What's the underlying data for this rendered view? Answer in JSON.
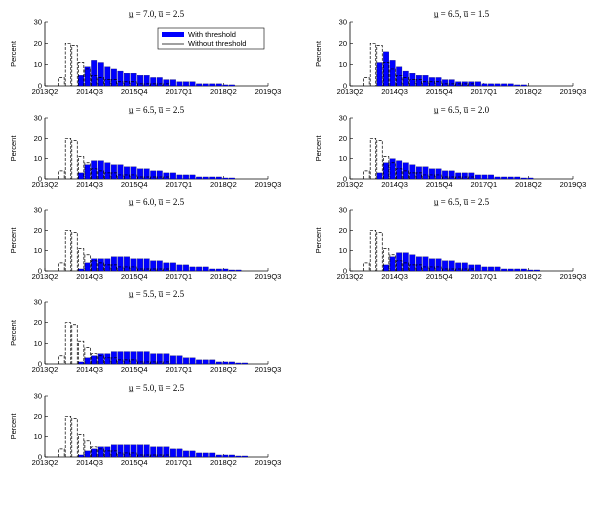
{
  "chart_data": [
    {
      "type": "bar",
      "title": "u̲ = 7.0, u̅ = 2.5",
      "ylabel": "Percent",
      "ylim": [
        0,
        30
      ],
      "yticks": [
        "0",
        "10",
        "20",
        "30"
      ],
      "xticks": [
        "2013Q2",
        "2014Q3",
        "2015Q4",
        "2017Q1",
        "2018Q2",
        "2019Q3"
      ],
      "legend": {
        "position": "top-right",
        "entries": [
          "With threshold",
          "Without threshold"
        ]
      },
      "series": [
        {
          "name": "With threshold",
          "style": "filled-bar",
          "values": [
            0,
            0,
            0,
            0,
            0,
            5,
            9,
            12,
            11,
            9,
            8,
            7,
            6,
            6,
            5,
            5,
            4,
            4,
            3,
            3,
            2,
            2,
            2,
            1,
            1,
            1,
            1,
            0.5,
            0.5,
            0,
            0,
            0,
            0,
            0
          ]
        },
        {
          "name": "Without threshold",
          "style": "dashed-outline",
          "values": [
            0,
            0,
            4,
            20,
            19,
            11,
            8,
            5,
            4,
            3,
            3,
            2,
            2,
            2,
            1,
            1,
            1,
            1,
            1,
            0,
            0,
            0,
            0,
            0,
            0,
            0,
            0,
            0,
            0,
            0,
            0,
            0,
            0,
            0
          ]
        }
      ]
    },
    {
      "type": "bar",
      "title": "u̲ = 6.5, u̅ = 1.5",
      "ylabel": "Percent",
      "ylim": [
        0,
        30
      ],
      "yticks": [
        "0",
        "10",
        "20",
        "30"
      ],
      "xticks": [
        "2013Q2",
        "2014Q3",
        "2015Q4",
        "2017Q1",
        "2018Q2",
        "2019Q3"
      ],
      "series": [
        {
          "name": "With threshold",
          "style": "filled-bar",
          "values": [
            0,
            0,
            0,
            0,
            11,
            16,
            12,
            9,
            7,
            6,
            5,
            5,
            4,
            4,
            3,
            3,
            2,
            2,
            2,
            2,
            1,
            1,
            1,
            1,
            1,
            0.5,
            0.5,
            0,
            0,
            0,
            0,
            0,
            0,
            0
          ]
        },
        {
          "name": "Without threshold",
          "style": "dashed-outline",
          "values": [
            0,
            0,
            4,
            20,
            19,
            11,
            8,
            5,
            4,
            3,
            3,
            2,
            2,
            2,
            1,
            1,
            1,
            1,
            1,
            0,
            0,
            0,
            0,
            0,
            0,
            0,
            0,
            0,
            0,
            0,
            0,
            0,
            0,
            0
          ]
        }
      ]
    },
    {
      "type": "bar",
      "title": "u̲ = 6.5, u̅ = 2.5",
      "ylabel": "Percent",
      "ylim": [
        0,
        30
      ],
      "yticks": [
        "0",
        "10",
        "20",
        "30"
      ],
      "xticks": [
        "2013Q2",
        "2014Q3",
        "2015Q4",
        "2017Q1",
        "2018Q2",
        "2019Q3"
      ],
      "series": [
        {
          "name": "With threshold",
          "style": "filled-bar",
          "values": [
            0,
            0,
            0,
            0,
            0,
            3,
            7,
            9,
            9,
            8,
            7,
            7,
            6,
            6,
            5,
            5,
            4,
            4,
            3,
            3,
            2,
            2,
            2,
            1,
            1,
            1,
            1,
            0.5,
            0.5,
            0,
            0,
            0,
            0,
            0
          ]
        },
        {
          "name": "Without threshold",
          "style": "dashed-outline",
          "values": [
            0,
            0,
            4,
            20,
            19,
            11,
            8,
            5,
            4,
            3,
            3,
            2,
            2,
            2,
            1,
            1,
            1,
            1,
            1,
            0,
            0,
            0,
            0,
            0,
            0,
            0,
            0,
            0,
            0,
            0,
            0,
            0,
            0,
            0
          ]
        }
      ]
    },
    {
      "type": "bar",
      "title": "u̲ = 6.5, u̅ = 2.0",
      "ylabel": "Percent",
      "ylim": [
        0,
        30
      ],
      "yticks": [
        "0",
        "10",
        "20",
        "30"
      ],
      "xticks": [
        "2013Q2",
        "2014Q3",
        "2015Q4",
        "2017Q1",
        "2018Q2",
        "2019Q3"
      ],
      "series": [
        {
          "name": "With threshold",
          "style": "filled-bar",
          "values": [
            0,
            0,
            0,
            0,
            3,
            8,
            10,
            9,
            8,
            7,
            6,
            6,
            5,
            5,
            4,
            4,
            3,
            3,
            3,
            2,
            2,
            2,
            1,
            1,
            1,
            1,
            0.5,
            0.5,
            0,
            0,
            0,
            0,
            0,
            0
          ]
        },
        {
          "name": "Without threshold",
          "style": "dashed-outline",
          "values": [
            0,
            0,
            4,
            20,
            19,
            11,
            8,
            5,
            4,
            3,
            3,
            2,
            2,
            2,
            1,
            1,
            1,
            1,
            1,
            0,
            0,
            0,
            0,
            0,
            0,
            0,
            0,
            0,
            0,
            0,
            0,
            0,
            0,
            0
          ]
        }
      ]
    },
    {
      "type": "bar",
      "title": "u̲ = 6.0, u̅ = 2.5",
      "ylabel": "Percent",
      "ylim": [
        0,
        30
      ],
      "yticks": [
        "0",
        "10",
        "20",
        "30"
      ],
      "xticks": [
        "2013Q2",
        "2014Q3",
        "2015Q4",
        "2017Q1",
        "2018Q2",
        "2019Q3"
      ],
      "series": [
        {
          "name": "With threshold",
          "style": "filled-bar",
          "values": [
            0,
            0,
            0,
            0,
            0,
            1,
            4,
            6,
            6,
            6,
            7,
            7,
            7,
            6,
            6,
            6,
            5,
            5,
            4,
            4,
            3,
            3,
            2,
            2,
            2,
            1,
            1,
            1,
            0.5,
            0.5,
            0,
            0,
            0,
            0
          ]
        },
        {
          "name": "Without threshold",
          "style": "dashed-outline",
          "values": [
            0,
            0,
            4,
            20,
            19,
            11,
            8,
            5,
            4,
            3,
            3,
            2,
            2,
            2,
            1,
            1,
            1,
            1,
            1,
            0,
            0,
            0,
            0,
            0,
            0,
            0,
            0,
            0,
            0,
            0,
            0,
            0,
            0,
            0
          ]
        }
      ]
    },
    {
      "type": "bar",
      "title": "u̲ = 6.5, u̅ = 2.5",
      "ylabel": "Percent",
      "ylim": [
        0,
        30
      ],
      "yticks": [
        "0",
        "10",
        "20",
        "30"
      ],
      "xticks": [
        "2013Q2",
        "2014Q3",
        "2015Q4",
        "2017Q1",
        "2018Q2",
        "2019Q3"
      ],
      "series": [
        {
          "name": "With threshold",
          "style": "filled-bar",
          "values": [
            0,
            0,
            0,
            0,
            0,
            3,
            7,
            9,
            9,
            8,
            7,
            7,
            6,
            6,
            5,
            5,
            4,
            4,
            3,
            3,
            2,
            2,
            2,
            1,
            1,
            1,
            1,
            0.5,
            0.5,
            0,
            0,
            0,
            0,
            0
          ]
        },
        {
          "name": "Without threshold",
          "style": "dashed-outline",
          "values": [
            0,
            0,
            4,
            20,
            19,
            11,
            8,
            5,
            4,
            3,
            3,
            2,
            2,
            2,
            1,
            1,
            1,
            1,
            1,
            0,
            0,
            0,
            0,
            0,
            0,
            0,
            0,
            0,
            0,
            0,
            0,
            0,
            0,
            0
          ]
        }
      ]
    },
    {
      "type": "bar",
      "title": "u̲ = 5.5, u̅ = 2.5",
      "ylabel": "Percent",
      "ylim": [
        0,
        30
      ],
      "yticks": [
        "0",
        "10",
        "20",
        "30"
      ],
      "xticks": [
        "2013Q2",
        "2014Q3",
        "2015Q4",
        "2017Q1",
        "2018Q2",
        "2019Q3"
      ],
      "series": [
        {
          "name": "With threshold",
          "style": "filled-bar",
          "values": [
            0,
            0,
            0,
            0,
            0,
            1,
            3,
            4,
            5,
            5,
            6,
            6,
            6,
            6,
            6,
            6,
            5,
            5,
            5,
            4,
            4,
            3,
            3,
            2,
            2,
            2,
            1,
            1,
            1,
            0.5,
            0.5,
            0,
            0,
            0
          ]
        },
        {
          "name": "Without threshold",
          "style": "dashed-outline",
          "values": [
            0,
            0,
            4,
            20,
            19,
            11,
            8,
            5,
            4,
            3,
            3,
            2,
            2,
            2,
            1,
            1,
            1,
            1,
            1,
            0,
            0,
            0,
            0,
            0,
            0,
            0,
            0,
            0,
            0,
            0,
            0,
            0,
            0,
            0
          ]
        }
      ]
    },
    {
      "type": "bar",
      "title": "u̲ = 5.0, u̅ = 2.5",
      "ylabel": "Percent",
      "ylim": [
        0,
        30
      ],
      "yticks": [
        "0",
        "10",
        "20",
        "30"
      ],
      "xticks": [
        "2013Q2",
        "2014Q3",
        "2015Q4",
        "2017Q1",
        "2018Q2",
        "2019Q3"
      ],
      "series": [
        {
          "name": "With threshold",
          "style": "filled-bar",
          "values": [
            0,
            0,
            0,
            0,
            0,
            1,
            3,
            4,
            5,
            5,
            6,
            6,
            6,
            6,
            6,
            6,
            5,
            5,
            5,
            4,
            4,
            3,
            3,
            2,
            2,
            2,
            1,
            1,
            1,
            0.5,
            0.5,
            0,
            0,
            0
          ]
        },
        {
          "name": "Without threshold",
          "style": "dashed-outline",
          "values": [
            0,
            0,
            4,
            20,
            19,
            11,
            8,
            5,
            4,
            3,
            3,
            2,
            2,
            2,
            1,
            1,
            1,
            1,
            1,
            0,
            0,
            0,
            0,
            0,
            0,
            0,
            0,
            0,
            0,
            0,
            0,
            0,
            0,
            0
          ]
        }
      ]
    }
  ],
  "colors": {
    "with_threshold": "#0000ff",
    "without_threshold": "#000000",
    "axis": "#000000"
  }
}
